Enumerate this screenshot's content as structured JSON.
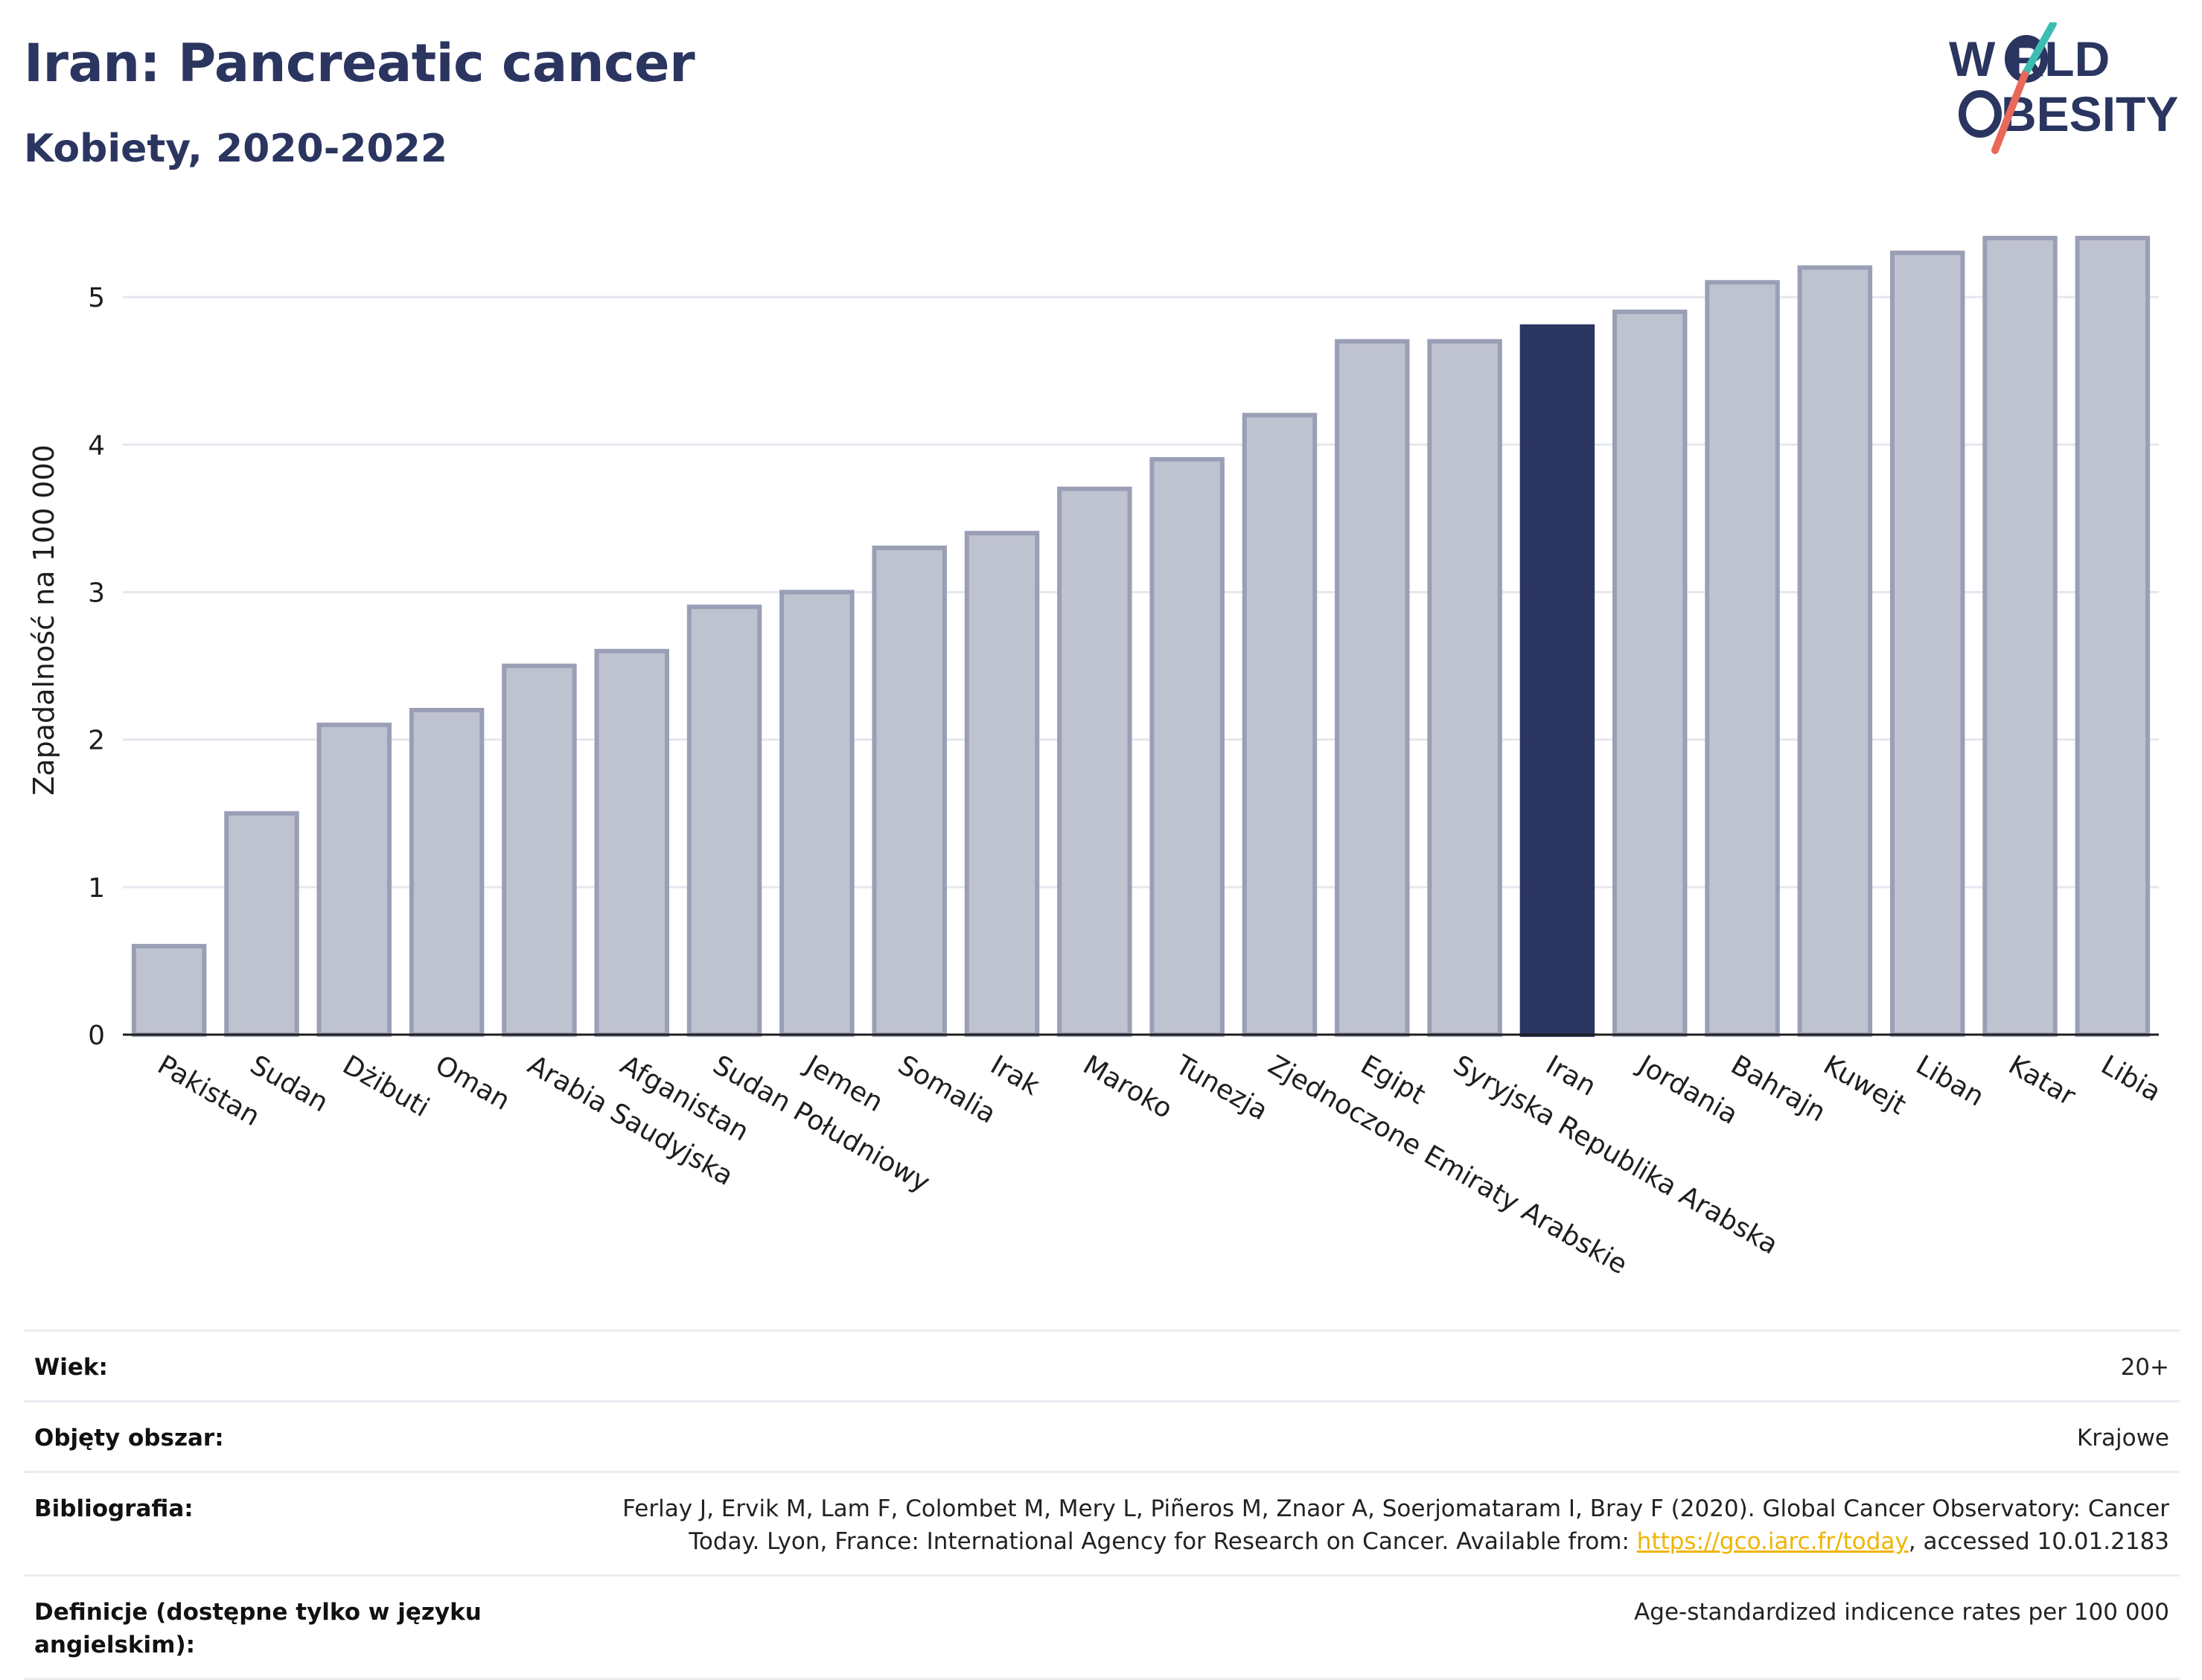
{
  "header": {
    "title": "Iran: Pancreatic cancer",
    "subtitle": "Kobiety, 2020-2022"
  },
  "logo": {
    "line1": "W RLD",
    "line2": "BESITY",
    "colors": {
      "text": "#2a3560",
      "slash_teal": "#3dbdb2",
      "slash_coral": "#e8685a"
    }
  },
  "chart_data": {
    "type": "bar",
    "ylabel": "Zapadalność na 100 000",
    "xlabel": "",
    "ylim": [
      0,
      5.5
    ],
    "yticks": [
      0,
      1,
      2,
      3,
      4,
      5
    ],
    "grid": true,
    "highlight": "Iran",
    "colors": {
      "bar": "#bfc2cf",
      "bar_border": "#9a9fb6",
      "highlight": "#2a3560",
      "grid": "#e6e7ee",
      "axis": "#1e1e1e"
    },
    "categories": [
      "Pakistan",
      "Sudan",
      "Dżibuti",
      "Oman",
      "Arabia Saudyjska",
      "Afganistan",
      "Sudan Południowy",
      "Jemen",
      "Somalia",
      "Irak",
      "Maroko",
      "Tunezja",
      "Zjednoczone Emiraty Arabskie",
      "Egipt",
      "Syryjska Republika Arabska",
      "Iran",
      "Jordania",
      "Bahrajn",
      "Kuwejt",
      "Liban",
      "Katar",
      "Libia"
    ],
    "values": [
      0.6,
      1.5,
      2.1,
      2.2,
      2.5,
      2.6,
      2.9,
      3.0,
      3.3,
      3.4,
      3.7,
      3.9,
      4.2,
      4.7,
      4.7,
      4.8,
      4.9,
      5.1,
      5.2,
      5.3,
      5.4,
      5.4
    ]
  },
  "meta": {
    "rows": [
      {
        "key": "Wiek:",
        "value": "20+"
      },
      {
        "key": "Objęty obszar:",
        "value": "Krajowe"
      },
      {
        "key": "Bibliografia:",
        "value_line1": "Ferlay J, Ervik M, Lam F, Colombet M, Mery L, Piñeros M, Znaor A, Soerjomataram I, Bray F (2020). Global Cancer Observatory: Cancer",
        "value_line2_pre": "Today. Lyon, France: International Agency for Research on Cancer. Available from: ",
        "value_link": "https://gco.iarc.fr/today",
        "value_line2_post": ", accessed 10.01.2183"
      },
      {
        "key": "Definicje (dostępne tylko w języku angielskim):",
        "value": "Age-standardized indicence rates per 100 000"
      }
    ]
  }
}
